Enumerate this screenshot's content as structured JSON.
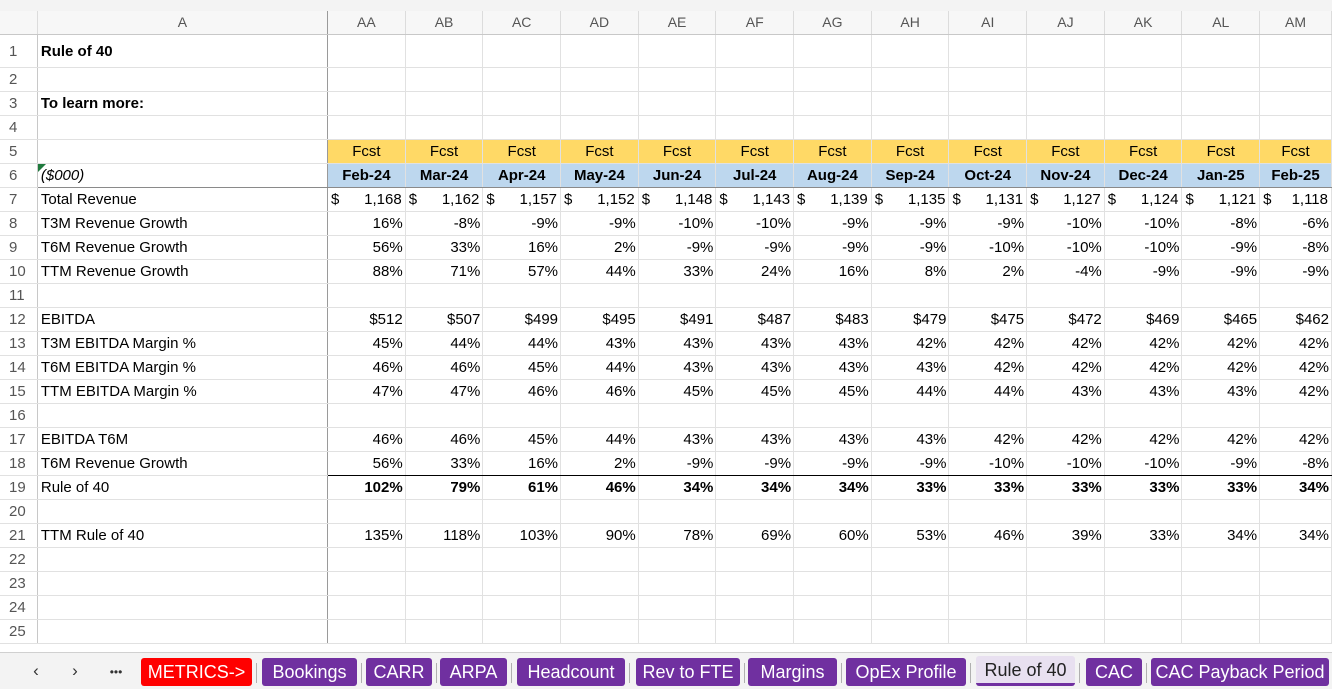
{
  "columns": [
    "A",
    "AA",
    "AB",
    "AC",
    "AD",
    "AE",
    "AF",
    "AG",
    "AH",
    "AI",
    "AJ",
    "AK",
    "AL",
    "AM"
  ],
  "rows": [
    {
      "n": "1",
      "label": "Rule of 40",
      "style": "title",
      "values": []
    },
    {
      "n": "2",
      "label": "",
      "values": []
    },
    {
      "n": "3",
      "label": "To learn more:",
      "style": "bold",
      "values": []
    },
    {
      "n": "4",
      "label": "",
      "values": []
    },
    {
      "n": "5",
      "label": "",
      "style": "fcst",
      "values": [
        "Fcst",
        "Fcst",
        "Fcst",
        "Fcst",
        "Fcst",
        "Fcst",
        "Fcst",
        "Fcst",
        "Fcst",
        "Fcst",
        "Fcst",
        "Fcst",
        "Fcst"
      ]
    },
    {
      "n": "6",
      "label": "($000)",
      "style": "date",
      "values": [
        "Feb-24",
        "Mar-24",
        "Apr-24",
        "May-24",
        "Jun-24",
        "Jul-24",
        "Aug-24",
        "Sep-24",
        "Oct-24",
        "Nov-24",
        "Dec-24",
        "Jan-25",
        "Feb-25"
      ]
    },
    {
      "n": "7",
      "label": "Total Revenue",
      "style": "money",
      "values": [
        "1,168",
        "1,162",
        "1,157",
        "1,152",
        "1,148",
        "1,143",
        "1,139",
        "1,135",
        "1,131",
        "1,127",
        "1,124",
        "1,121",
        "1,118"
      ]
    },
    {
      "n": "8",
      "label": "T3M Revenue Growth",
      "values": [
        "16%",
        "-8%",
        "-9%",
        "-9%",
        "-10%",
        "-10%",
        "-9%",
        "-9%",
        "-9%",
        "-10%",
        "-10%",
        "-8%",
        "-6%"
      ]
    },
    {
      "n": "9",
      "label": "T6M Revenue Growth",
      "values": [
        "56%",
        "33%",
        "16%",
        "2%",
        "-9%",
        "-9%",
        "-9%",
        "-9%",
        "-10%",
        "-10%",
        "-10%",
        "-9%",
        "-8%"
      ]
    },
    {
      "n": "10",
      "label": "TTM Revenue Growth",
      "values": [
        "88%",
        "71%",
        "57%",
        "44%",
        "33%",
        "24%",
        "16%",
        "8%",
        "2%",
        "-4%",
        "-9%",
        "-9%",
        "-9%"
      ]
    },
    {
      "n": "11",
      "label": "",
      "values": []
    },
    {
      "n": "12",
      "label": "EBITDA",
      "values": [
        "$512",
        "$507",
        "$499",
        "$495",
        "$491",
        "$487",
        "$483",
        "$479",
        "$475",
        "$472",
        "$469",
        "$465",
        "$462"
      ]
    },
    {
      "n": "13",
      "label": "T3M EBITDA Margin %",
      "values": [
        "45%",
        "44%",
        "44%",
        "43%",
        "43%",
        "43%",
        "43%",
        "42%",
        "42%",
        "42%",
        "42%",
        "42%",
        "42%"
      ]
    },
    {
      "n": "14",
      "label": "T6M EBITDA Margin %",
      "values": [
        "46%",
        "46%",
        "45%",
        "44%",
        "43%",
        "43%",
        "43%",
        "43%",
        "42%",
        "42%",
        "42%",
        "42%",
        "42%"
      ]
    },
    {
      "n": "15",
      "label": "TTM EBITDA Margin %",
      "values": [
        "47%",
        "47%",
        "46%",
        "46%",
        "45%",
        "45%",
        "45%",
        "44%",
        "44%",
        "43%",
        "43%",
        "43%",
        "42%"
      ]
    },
    {
      "n": "16",
      "label": "",
      "values": []
    },
    {
      "n": "17",
      "label": "EBITDA T6M",
      "values": [
        "46%",
        "46%",
        "45%",
        "44%",
        "43%",
        "43%",
        "43%",
        "43%",
        "42%",
        "42%",
        "42%",
        "42%",
        "42%"
      ]
    },
    {
      "n": "18",
      "label": "T6M Revenue Growth",
      "style": "underline",
      "values": [
        "56%",
        "33%",
        "16%",
        "2%",
        "-9%",
        "-9%",
        "-9%",
        "-9%",
        "-10%",
        "-10%",
        "-10%",
        "-9%",
        "-8%"
      ]
    },
    {
      "n": "19",
      "label": "Rule of 40",
      "style": "boldvals",
      "values": [
        "102%",
        "79%",
        "61%",
        "46%",
        "34%",
        "34%",
        "34%",
        "33%",
        "33%",
        "33%",
        "33%",
        "33%",
        "34%"
      ]
    },
    {
      "n": "20",
      "label": "",
      "values": []
    },
    {
      "n": "21",
      "label": "TTM Rule of 40",
      "values": [
        "135%",
        "118%",
        "103%",
        "90%",
        "78%",
        "69%",
        "60%",
        "53%",
        "46%",
        "39%",
        "33%",
        "34%",
        "34%"
      ]
    },
    {
      "n": "22",
      "label": "",
      "values": []
    },
    {
      "n": "23",
      "label": "",
      "values": []
    },
    {
      "n": "24",
      "label": "",
      "values": []
    },
    {
      "n": "25",
      "label": "",
      "values": []
    }
  ],
  "currency_symbol": "$",
  "tabs": {
    "nav_prev": "‹",
    "nav_next": "›",
    "nav_more": "•••",
    "items": [
      {
        "label": "METRICS->",
        "color": "red"
      },
      {
        "label": "Bookings",
        "color": "purple"
      },
      {
        "label": "CARR",
        "color": "purple"
      },
      {
        "label": "ARPA",
        "color": "purple"
      },
      {
        "label": "Headcount",
        "color": "purple"
      },
      {
        "label": "Rev to FTE",
        "color": "purple"
      },
      {
        "label": "Margins",
        "color": "purple"
      },
      {
        "label": "OpEx Profile",
        "color": "purple"
      },
      {
        "label": "Rule of 40",
        "color": "active"
      },
      {
        "label": "CAC",
        "color": "purple"
      },
      {
        "label": "CAC Payback Period",
        "color": "purple"
      }
    ]
  },
  "colors": {
    "fcst": "#ffd966",
    "date_header": "#bdd7ee",
    "tab_purple": "#7030a0",
    "tab_red": "#ff0000"
  }
}
